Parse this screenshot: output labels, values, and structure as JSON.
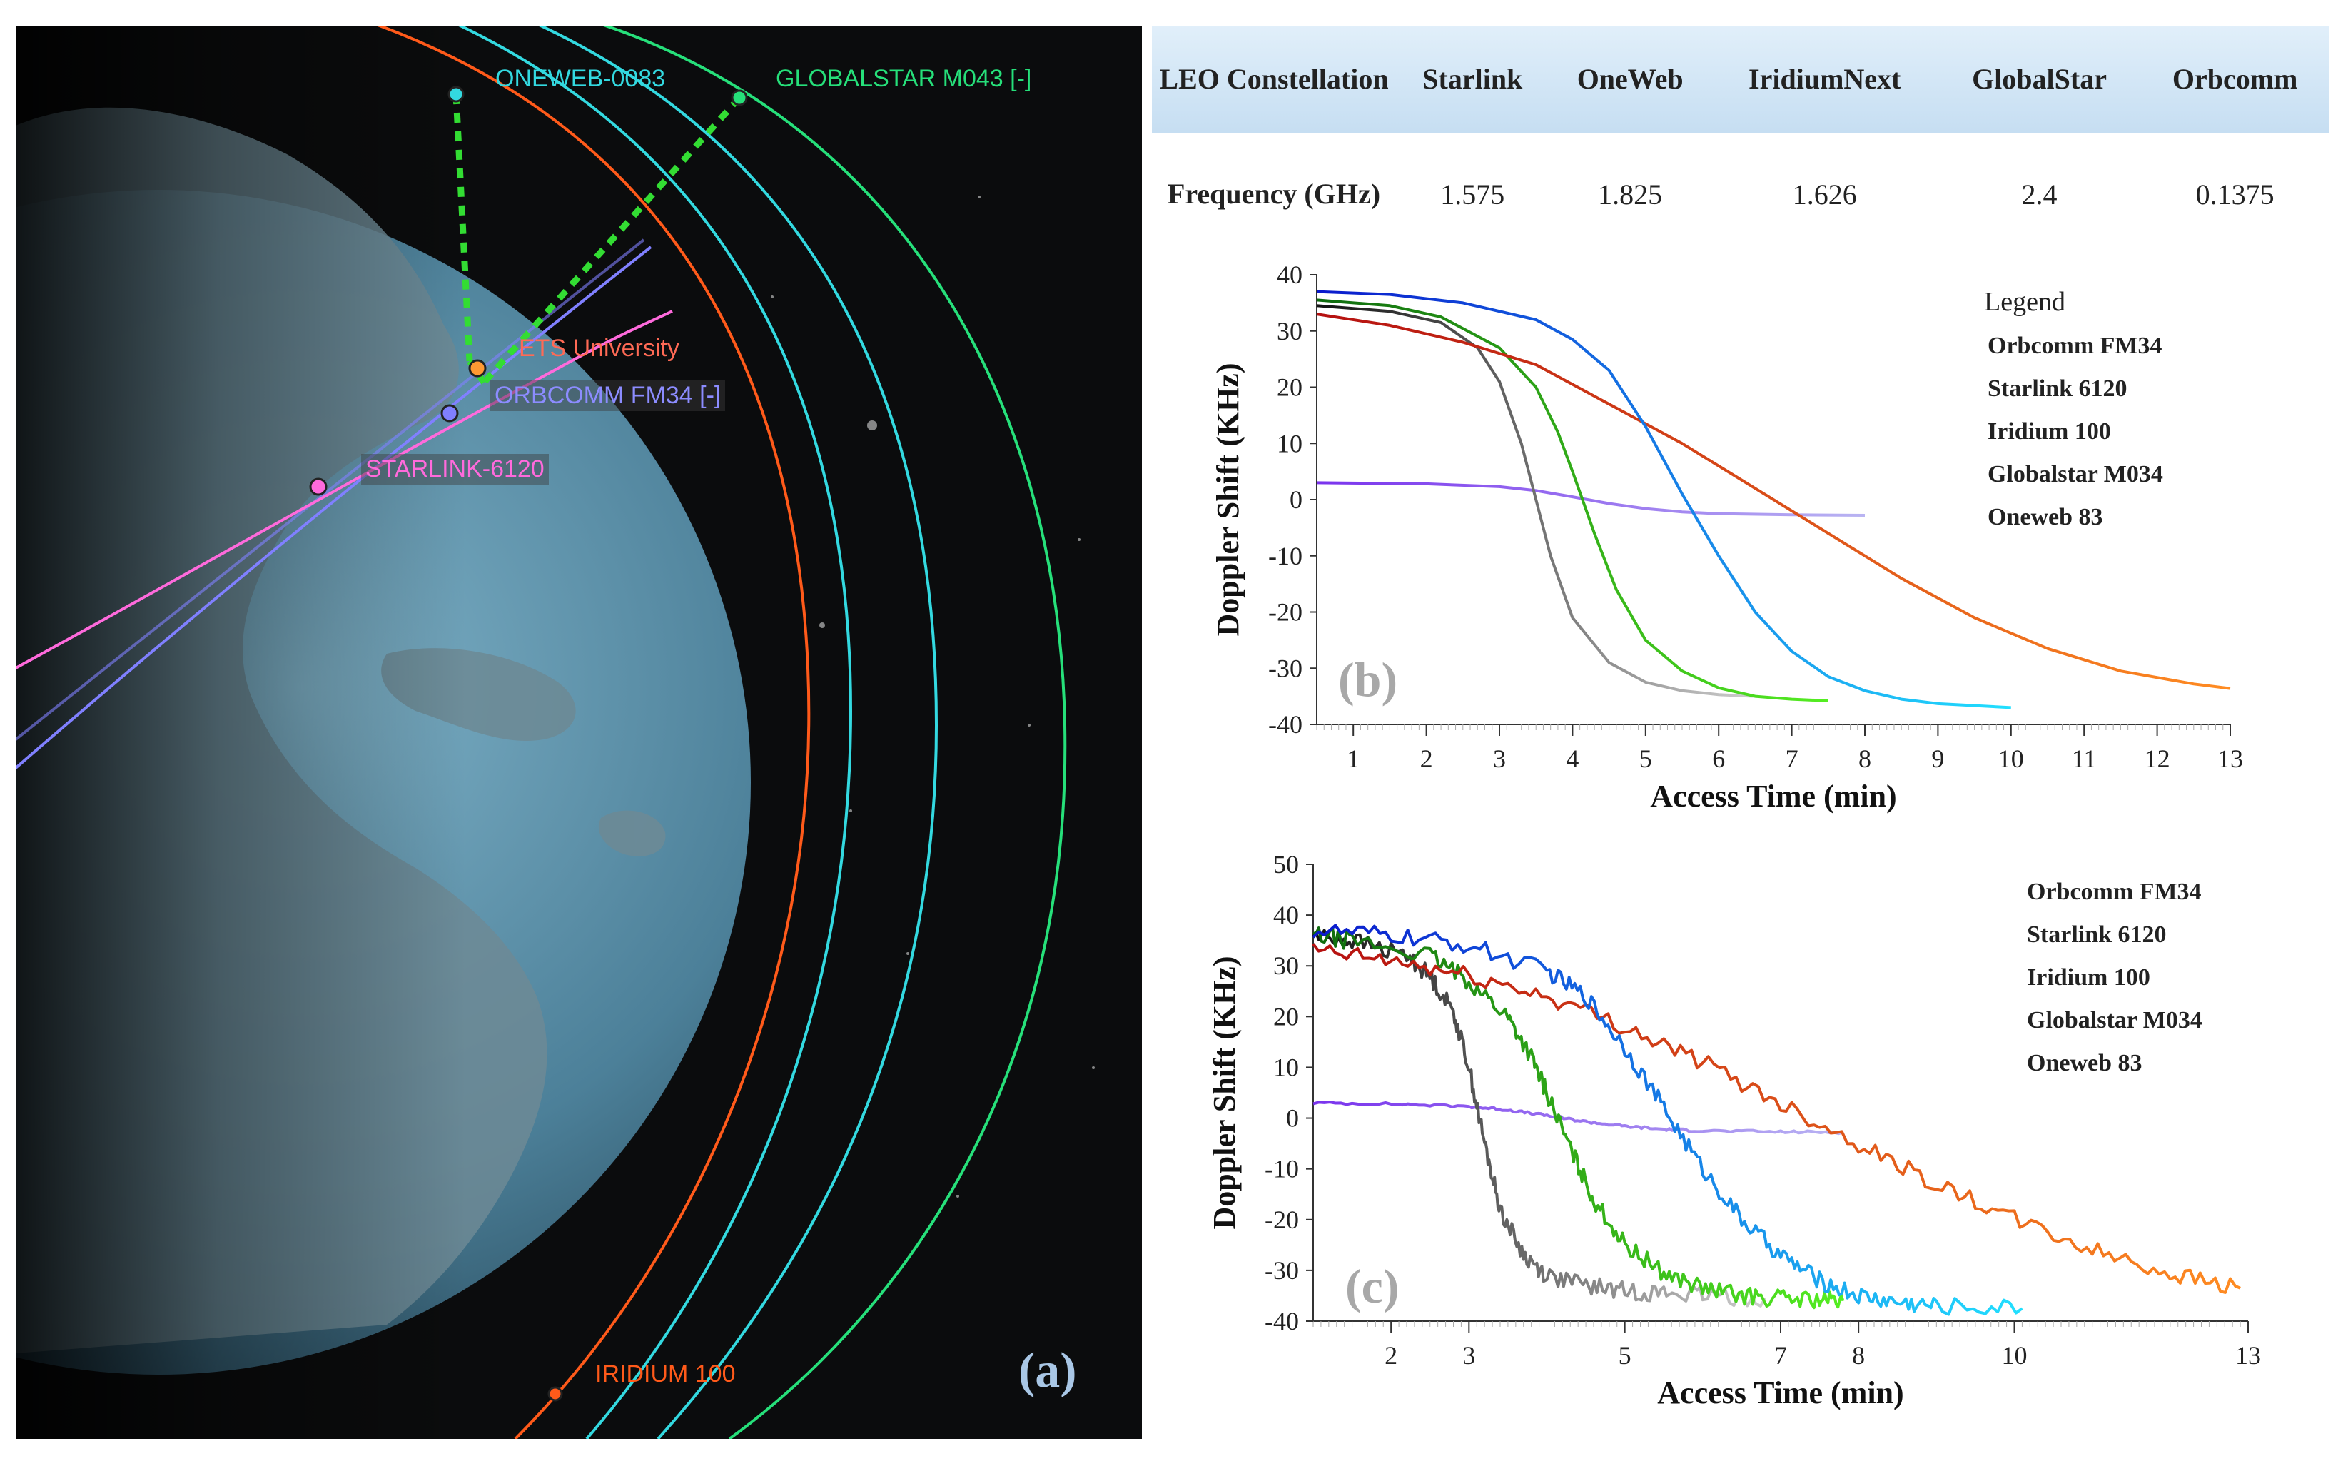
{
  "panel_a": {
    "label": "(a)",
    "satellites": [
      {
        "key": "oneweb",
        "name": "ONEWEB-0083",
        "color": "#33d9e0"
      },
      {
        "key": "globalstar",
        "name": "GLOBALSTAR M043 [-]",
        "color": "#26e07a"
      },
      {
        "key": "ets",
        "name": "ETS University",
        "color": "#ff6a55"
      },
      {
        "key": "orbcomm",
        "name": "ORBCOMM FM34 [-]",
        "color": "#8080ff"
      },
      {
        "key": "starlink",
        "name": "STARLINK-6120",
        "color": "#ff6adc"
      },
      {
        "key": "iridium",
        "name": "IRIDIUM 100",
        "color": "#ff5a1a"
      }
    ]
  },
  "table": {
    "headers": [
      "LEO Constellation",
      "Starlink",
      "OneWeb",
      "IridiumNext",
      "GlobalStar",
      "Orbcomm"
    ],
    "row_label": "Frequency (GHz)",
    "values": [
      "1.575",
      "1.825",
      "1.626",
      "2.4",
      "0.1375"
    ]
  },
  "chart_data": [
    {
      "id": "b",
      "type": "line",
      "panel_label": "(b)",
      "xlabel": "Access Time (min)",
      "ylabel": "Doppler Shift (KHz)",
      "xlim": [
        0.5,
        13
      ],
      "ylim": [
        -40,
        40
      ],
      "xticks": [
        1,
        2,
        3,
        4,
        5,
        6,
        7,
        8,
        9,
        10,
        11,
        12,
        13
      ],
      "yticks": [
        -40,
        -30,
        -20,
        -10,
        0,
        10,
        20,
        30,
        40
      ],
      "legend_title": "Legend",
      "legend_position": "top-right",
      "series": [
        {
          "name": "Orbcomm FM34",
          "gradient": [
            "#7a33ee",
            "#b9b4f2"
          ],
          "x": [
            0.5,
            2,
            3,
            3.5,
            4,
            4.5,
            5,
            5.5,
            6,
            7,
            8
          ],
          "y": [
            3,
            2.8,
            2.3,
            1.6,
            0.5,
            -0.7,
            -1.6,
            -2.2,
            -2.5,
            -2.7,
            -2.8
          ]
        },
        {
          "name": "Starlink 6120",
          "gradient": [
            "#111111",
            "#cfcfcf"
          ],
          "x": [
            0.5,
            1.5,
            2.2,
            2.7,
            3,
            3.3,
            3.5,
            3.7,
            4,
            4.5,
            5,
            5.5,
            6,
            6.5
          ],
          "y": [
            34.5,
            33.5,
            31.5,
            27,
            21,
            10,
            0,
            -10,
            -21,
            -29,
            -32.5,
            -34,
            -34.7,
            -35
          ]
        },
        {
          "name": "Iridium 100",
          "gradient": [
            "#0e6a0e",
            "#55ee22"
          ],
          "x": [
            0.5,
            1.5,
            2.2,
            3,
            3.5,
            3.8,
            4,
            4.3,
            4.6,
            5,
            5.5,
            6,
            6.5,
            7,
            7.5
          ],
          "y": [
            35.5,
            34.5,
            32.5,
            27,
            20,
            12,
            5,
            -6,
            -16,
            -25,
            -30.5,
            -33.5,
            -35,
            -35.5,
            -35.8
          ]
        },
        {
          "name": "Globalstar M034",
          "gradient": [
            "#b51010",
            "#ff8c22"
          ],
          "x": [
            0.5,
            1.5,
            2.5,
            3.5,
            4.5,
            5.5,
            6.5,
            7.5,
            8.5,
            9.5,
            10.5,
            11.5,
            12.5,
            13
          ],
          "y": [
            33,
            31,
            28,
            24,
            17,
            10,
            2,
            -6,
            -14,
            -21,
            -26.5,
            -30.5,
            -32.8,
            -33.6
          ]
        },
        {
          "name": "Oneweb 83",
          "gradient": [
            "#0a18cc",
            "#22e0ff"
          ],
          "x": [
            0.5,
            1.5,
            2.5,
            3.5,
            4,
            4.5,
            5,
            5.5,
            6,
            6.5,
            7,
            7.5,
            8,
            8.5,
            9,
            10
          ],
          "y": [
            37,
            36.5,
            35,
            32,
            28.5,
            23,
            13,
            1,
            -10,
            -20,
            -27,
            -31.5,
            -34,
            -35.5,
            -36.3,
            -37
          ]
        }
      ]
    },
    {
      "id": "c",
      "type": "line",
      "panel_label": "(c)",
      "xlabel": "Access Time (min)",
      "ylabel": "Doppler Shift (KHz)",
      "xlim": [
        1,
        13
      ],
      "ylim": [
        -40,
        50
      ],
      "xticks": [
        2,
        3,
        5,
        7,
        8,
        10,
        13
      ],
      "yticks": [
        -40,
        -30,
        -20,
        -10,
        0,
        10,
        20,
        30,
        40,
        50
      ],
      "legend_position": "top-right",
      "series": [
        {
          "name": "Orbcomm FM34",
          "gradient": [
            "#7a33ee",
            "#b9b4f2"
          ],
          "x": [
            1,
            2,
            3,
            3.5,
            4,
            4.5,
            5,
            5.5,
            6,
            7,
            7.8
          ],
          "y": [
            3,
            2.8,
            2.3,
            1.6,
            0.5,
            -0.7,
            -1.6,
            -2.2,
            -2.5,
            -2.7,
            -2.8
          ]
        },
        {
          "name": "Starlink 6120",
          "gradient": [
            "#111111",
            "#cfcfcf"
          ],
          "x": [
            1,
            1.5,
            2.2,
            2.5,
            2.8,
            3,
            3.2,
            3.4,
            3.7,
            4,
            4.5,
            5,
            5.5,
            6,
            6.8
          ],
          "y": [
            36,
            35,
            32,
            28,
            21,
            10,
            -5,
            -18,
            -27,
            -31,
            -33,
            -34,
            -34.5,
            -35,
            -35.5
          ]
        },
        {
          "name": "Iridium 100",
          "gradient": [
            "#0e6a0e",
            "#55ee22"
          ],
          "x": [
            1,
            1.5,
            2.5,
            3,
            3.5,
            3.8,
            4,
            4.3,
            4.6,
            5,
            5.5,
            6,
            6.5,
            7,
            7.5,
            7.8
          ],
          "y": [
            36,
            35,
            32,
            27,
            20,
            12,
            5,
            -6,
            -16,
            -25,
            -30.5,
            -33.5,
            -35,
            -35.5,
            -35.8,
            -36
          ]
        },
        {
          "name": "Globalstar M034",
          "gradient": [
            "#b51010",
            "#ff8c22"
          ],
          "x": [
            1,
            2,
            3,
            4,
            5,
            6,
            7,
            8,
            9,
            10,
            11,
            12,
            12.9
          ],
          "y": [
            33,
            31,
            28,
            24,
            18,
            11,
            3,
            -5,
            -13,
            -20,
            -26,
            -30.5,
            -33.5
          ]
        },
        {
          "name": "Oneweb 83",
          "gradient": [
            "#0a18cc",
            "#22e0ff"
          ],
          "x": [
            1,
            2,
            3,
            4,
            4.5,
            5,
            5.5,
            6,
            6.5,
            7,
            7.5,
            8,
            8.5,
            9,
            10.1
          ],
          "y": [
            37,
            36,
            34,
            29,
            24,
            14,
            2,
            -10,
            -20,
            -27,
            -32,
            -35,
            -36.3,
            -37,
            -37.5
          ]
        }
      ]
    }
  ]
}
